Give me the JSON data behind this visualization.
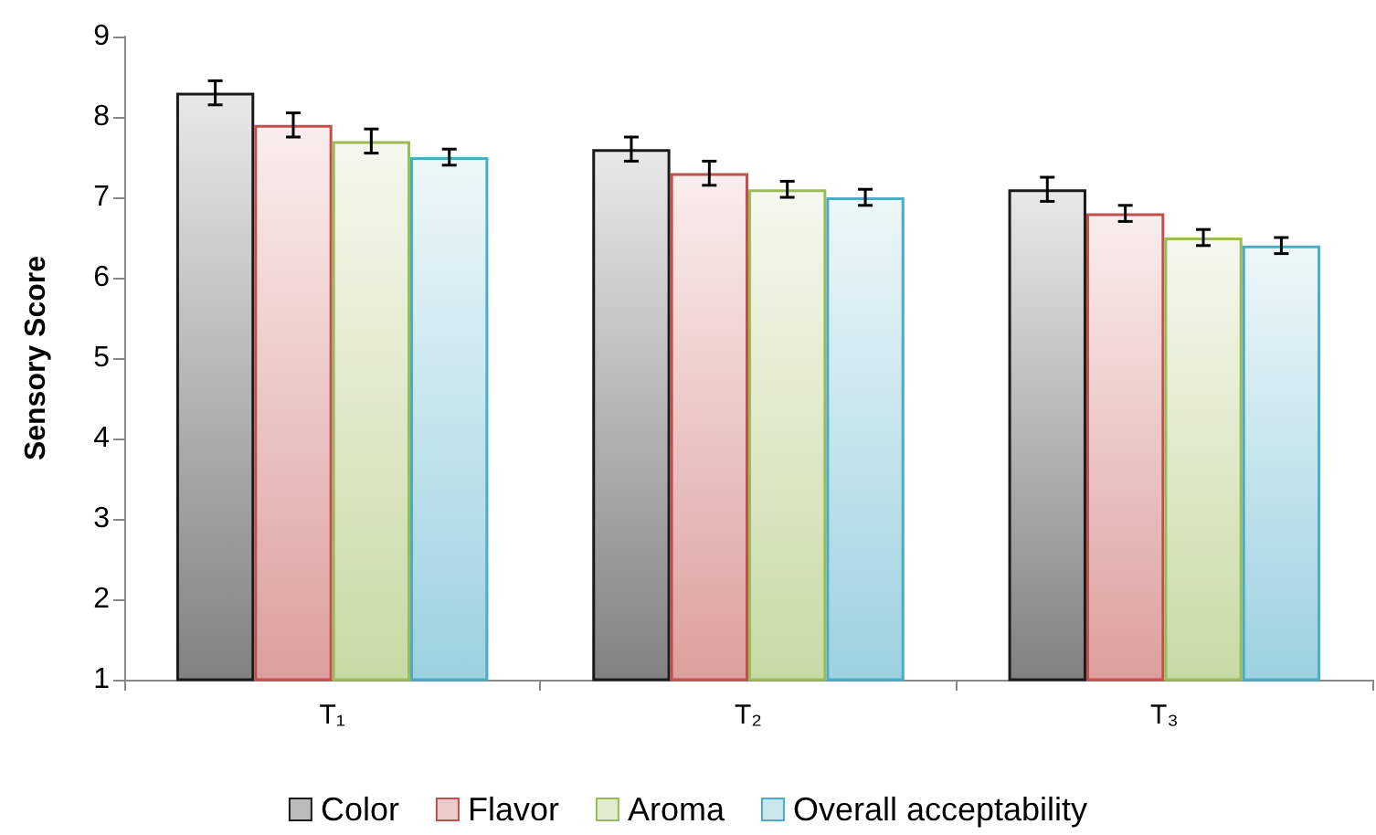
{
  "chart_data": {
    "type": "bar",
    "ylabel": "Sensory Score",
    "categories": [
      "T₁",
      "T₂",
      "T₃"
    ],
    "series": [
      {
        "name": "Color",
        "color": "#1a1a1a",
        "values": [
          8.3,
          7.6,
          7.1
        ],
        "errors": [
          0.15,
          0.15,
          0.15
        ]
      },
      {
        "name": "Flavor",
        "color": "#c0504d",
        "values": [
          7.9,
          7.3,
          6.8
        ],
        "errors": [
          0.15,
          0.15,
          0.1
        ]
      },
      {
        "name": "Aroma",
        "color": "#9bbb59",
        "values": [
          7.7,
          7.1,
          6.5
        ],
        "errors": [
          0.15,
          0.1,
          0.1
        ]
      },
      {
        "name": "Overall acceptability",
        "color": "#4bacc6",
        "values": [
          7.5,
          7.0,
          6.4
        ],
        "errors": [
          0.1,
          0.1,
          0.1
        ]
      }
    ],
    "ylim": [
      1,
      9
    ],
    "yticks": [
      1,
      2,
      3,
      4,
      5,
      6,
      7,
      8,
      9
    ],
    "grid": false,
    "legend": "bottom"
  }
}
